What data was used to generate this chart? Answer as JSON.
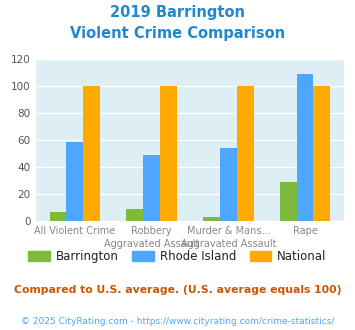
{
  "title_line1": "2019 Barrington",
  "title_line2": "Violent Crime Comparison",
  "categories_top": [
    "",
    "Robbery",
    "Murder & Mans...",
    ""
  ],
  "categories_bottom": [
    "All Violent Crime",
    "Aggravated Assault",
    "Aggravated Assault",
    "Rape"
  ],
  "barrington": [
    7,
    9,
    3,
    29
  ],
  "rhode_island": [
    59,
    49,
    54,
    109
  ],
  "national": [
    100,
    100,
    100,
    100
  ],
  "bar_colors": {
    "barrington": "#7cbb3c",
    "rhode_island": "#4da6ff",
    "national": "#ffaa00"
  },
  "ylim": [
    0,
    120
  ],
  "yticks": [
    0,
    20,
    40,
    60,
    80,
    100,
    120
  ],
  "title_color": "#2288cc",
  "plot_area_bg": "#ddeef4",
  "grid_color": "#ffffff",
  "legend_labels": [
    "Barrington",
    "Rhode Island",
    "National"
  ],
  "footnote1": "Compared to U.S. average. (U.S. average equals 100)",
  "footnote2": "© 2025 CityRating.com - https://www.cityrating.com/crime-statistics/",
  "footnote1_color": "#cc5500",
  "footnote2_color": "#4da6ff"
}
